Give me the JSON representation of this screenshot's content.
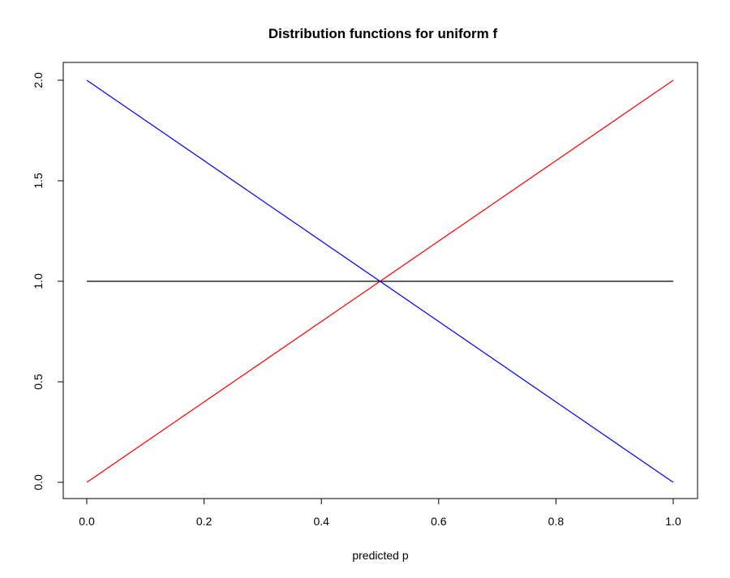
{
  "chart_data": {
    "type": "line",
    "title": "Distribution functions for uniform f",
    "xlabel": "predicted p",
    "ylabel": "",
    "xlim": [
      0,
      1
    ],
    "ylim": [
      0,
      2
    ],
    "x_ticks": [
      0.0,
      0.2,
      0.4,
      0.6,
      0.8,
      1.0
    ],
    "x_tick_labels": [
      "0.0",
      "0.2",
      "0.4",
      "0.6",
      "0.8",
      "1.0"
    ],
    "y_ticks": [
      0.0,
      0.5,
      1.0,
      1.5,
      2.0
    ],
    "y_tick_labels": [
      "0.0",
      "0.5",
      "1.0",
      "1.5",
      "2.0"
    ],
    "grid": false,
    "legend": "none",
    "series": [
      {
        "color": "#000000",
        "x": [
          0,
          1
        ],
        "y": [
          1,
          1
        ]
      },
      {
        "color": "#ff0000",
        "x": [
          0,
          1
        ],
        "y": [
          0,
          2
        ]
      },
      {
        "color": "#0000ff",
        "x": [
          0,
          1
        ],
        "y": [
          2,
          0
        ]
      }
    ]
  }
}
